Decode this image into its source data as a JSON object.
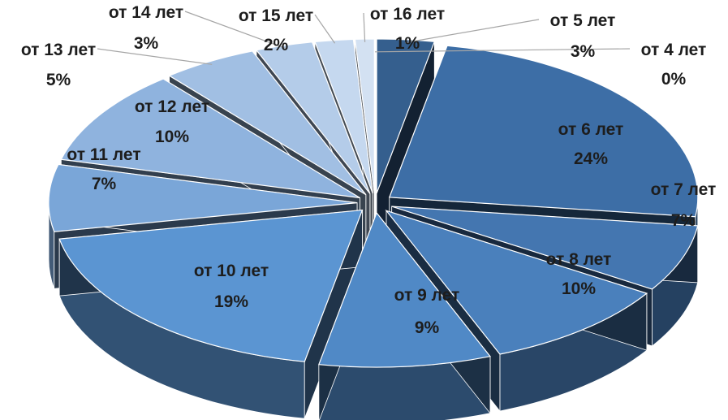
{
  "chart_data": {
    "type": "pie",
    "style": "3d-exploded",
    "categories": [
      "от 4 лет",
      "от 5 лет",
      "от 6 лет",
      "от 7 лет",
      "от 8 лет",
      "от 9 лет",
      "от 10 лет",
      "от 11 лет",
      "от 12 лет",
      "от 13 лет",
      "от 14 лет",
      "от 15 лет",
      "от 16 лет"
    ],
    "values": [
      0,
      3,
      24,
      7,
      10,
      9,
      19,
      7,
      10,
      5,
      3,
      2,
      1
    ],
    "value_labels": [
      "0%",
      "3%",
      "24%",
      "7%",
      "10%",
      "9%",
      "19%",
      "7%",
      "10%",
      "5%",
      "3%",
      "2%",
      "1%"
    ],
    "colors": [
      "#2f5a88",
      "#355f8e",
      "#3d6ea6",
      "#4476b0",
      "#4a80bc",
      "#5089c6",
      "#5b95d2",
      "#7aa6d8",
      "#8fb3de",
      "#a1bfe3",
      "#b4cce9",
      "#c5d8ef",
      "#d3e1f2"
    ],
    "legend": "none"
  }
}
